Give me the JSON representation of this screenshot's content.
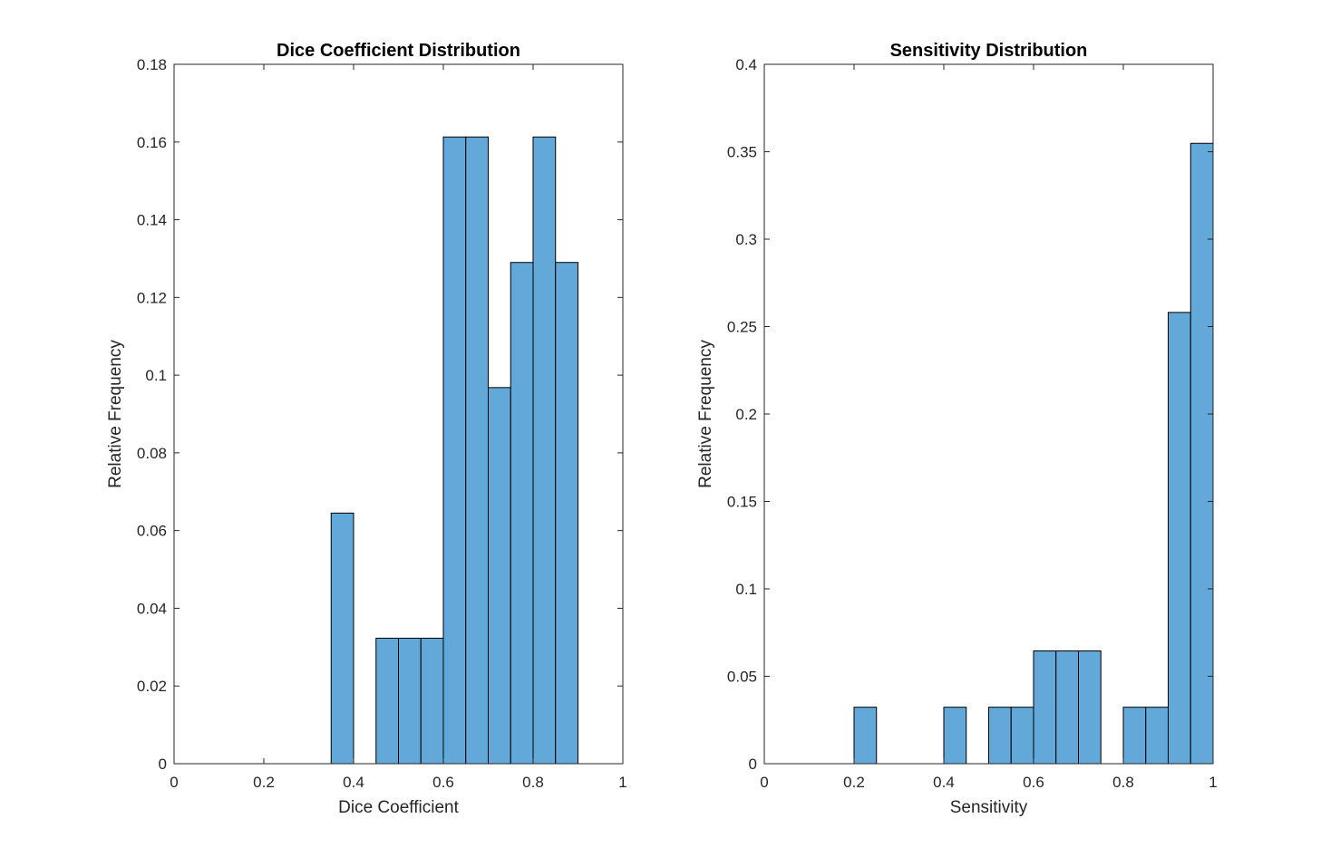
{
  "figure": {
    "background": "#ffffff",
    "bar_color": "#62a8d8",
    "axis_color": "#262626"
  },
  "chart_data": [
    {
      "type": "bar",
      "subtype": "histogram",
      "title": "Dice Coefficient Distribution",
      "xlabel": "Dice Coefficient",
      "ylabel": "Relative Frequency",
      "xlim": [
        0,
        1
      ],
      "ylim": [
        0,
        0.18
      ],
      "xticks": [
        0,
        0.2,
        0.4,
        0.6,
        0.8,
        1
      ],
      "xtick_labels": [
        "0",
        "0.2",
        "0.4",
        "0.6",
        "0.8",
        "1"
      ],
      "yticks": [
        0,
        0.02,
        0.04,
        0.06,
        0.08,
        0.1,
        0.12,
        0.14,
        0.16,
        0.18
      ],
      "ytick_labels": [
        "0",
        "0.02",
        "0.04",
        "0.06",
        "0.08",
        "0.1",
        "0.12",
        "0.14",
        "0.16",
        "0.18"
      ],
      "grid": false,
      "bin_width": 0.05,
      "bins": [
        {
          "start": 0.35,
          "value": 0.0645
        },
        {
          "start": 0.45,
          "value": 0.0323
        },
        {
          "start": 0.5,
          "value": 0.0323
        },
        {
          "start": 0.55,
          "value": 0.0323
        },
        {
          "start": 0.6,
          "value": 0.1613
        },
        {
          "start": 0.65,
          "value": 0.1613
        },
        {
          "start": 0.7,
          "value": 0.0968
        },
        {
          "start": 0.75,
          "value": 0.129
        },
        {
          "start": 0.8,
          "value": 0.1613
        },
        {
          "start": 0.85,
          "value": 0.129
        }
      ]
    },
    {
      "type": "bar",
      "subtype": "histogram",
      "title": "Sensitivity Distribution",
      "xlabel": "Sensitivity",
      "ylabel": "Relative Frequency",
      "xlim": [
        0,
        1
      ],
      "ylim": [
        0,
        0.4
      ],
      "xticks": [
        0,
        0.2,
        0.4,
        0.6,
        0.8,
        1
      ],
      "xtick_labels": [
        "0",
        "0.2",
        "0.4",
        "0.6",
        "0.8",
        "1"
      ],
      "yticks": [
        0,
        0.05,
        0.1,
        0.15,
        0.2,
        0.25,
        0.3,
        0.35,
        0.4
      ],
      "ytick_labels": [
        "0",
        "0.05",
        "0.1",
        "0.15",
        "0.2",
        "0.25",
        "0.3",
        "0.35",
        "0.4"
      ],
      "grid": false,
      "bin_width": 0.05,
      "bins": [
        {
          "start": 0.2,
          "value": 0.0323
        },
        {
          "start": 0.4,
          "value": 0.0323
        },
        {
          "start": 0.5,
          "value": 0.0323
        },
        {
          "start": 0.55,
          "value": 0.0323
        },
        {
          "start": 0.6,
          "value": 0.0645
        },
        {
          "start": 0.65,
          "value": 0.0645
        },
        {
          "start": 0.7,
          "value": 0.0645
        },
        {
          "start": 0.8,
          "value": 0.0323
        },
        {
          "start": 0.85,
          "value": 0.0323
        },
        {
          "start": 0.9,
          "value": 0.2581
        },
        {
          "start": 0.95,
          "value": 0.3548
        }
      ]
    }
  ]
}
